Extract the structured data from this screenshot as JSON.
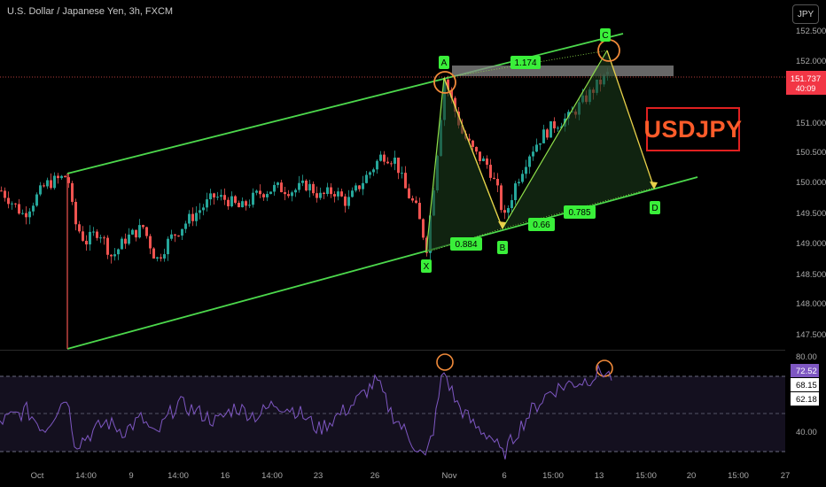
{
  "header": {
    "title": "U.S. Dollar / Japanese Yen, 3h, FXCM",
    "currency_button": "JPY"
  },
  "annotation_label": "USDJPY",
  "colors": {
    "background": "#000000",
    "candle_up": "#26a69a",
    "candle_down": "#ef5350",
    "channel": "#4cd84c",
    "pattern_line": "#8ee04a",
    "projection": "#e8d04a",
    "highlight_circle": "#f08a3a",
    "label_bg": "#3aef3a",
    "price_line": "#ef5350",
    "rsi_line": "#7e57c2",
    "current_price_bg": "#f23645"
  },
  "price_axis": {
    "ticks": [
      "152.500",
      "152.000",
      "151.000",
      "150.500",
      "150.000",
      "149.500",
      "149.000",
      "148.500",
      "148.000",
      "147.500"
    ],
    "current_price": "151.737",
    "countdown": "40:09"
  },
  "time_axis": {
    "ticks": [
      "Oct",
      "14:00",
      "9",
      "14:00",
      "16",
      "14:00",
      "23",
      "26",
      "Nov",
      "6",
      "15:00",
      "13",
      "15:00",
      "20",
      "15:00",
      "27"
    ]
  },
  "rsi_axis": {
    "ticks": [
      "80.00",
      "40.00"
    ],
    "value": "72.52",
    "upper": "68.15",
    "lower": "62.18"
  },
  "chart_data": {
    "type": "candlestick",
    "title": "U.S. Dollar / Japanese Yen, 3h, FXCM",
    "ylim": [
      147.3,
      152.7
    ],
    "current_price": 151.737,
    "harmonic_points": [
      {
        "label": "X",
        "price": 148.88
      },
      {
        "label": "A",
        "price": 151.76
      },
      {
        "label": "B",
        "price": 149.35
      },
      {
        "label": "C",
        "price": 152.2
      },
      {
        "label": "D",
        "price": 149.93
      }
    ],
    "ratios": [
      "1.174",
      "0.884",
      "0.66",
      "0.785"
    ],
    "rsi": {
      "value": 72.52,
      "upper": 68.15,
      "lower": 62.18,
      "ticks": [
        80,
        40
      ]
    }
  }
}
